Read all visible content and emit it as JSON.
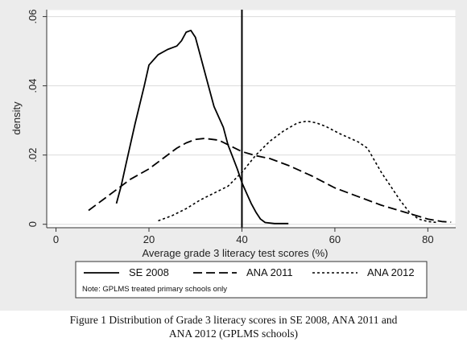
{
  "chart_data": {
    "type": "line",
    "xlabel": "Average grade 3 literacy test scores (%)",
    "ylabel": "density",
    "xlim": [
      -2,
      86
    ],
    "ylim": [
      -0.001,
      0.062
    ],
    "xticks": [
      0,
      20,
      40,
      60,
      80
    ],
    "xtick_labels": [
      "0",
      "20",
      "40",
      "60",
      "80"
    ],
    "yticks": [
      0,
      0.02,
      0.04,
      0.06
    ],
    "ytick_labels": [
      "0",
      ".02",
      ".04",
      ".06"
    ],
    "grid": true,
    "reference_line": {
      "x": 40
    },
    "legend_position": "bottom",
    "note": "Note: GPLMS treated primary schools only",
    "series": [
      {
        "name": "SE 2008",
        "style": "solid",
        "points": [
          [
            13,
            0.006
          ],
          [
            14,
            0.011
          ],
          [
            15,
            0.017
          ],
          [
            17,
            0.029
          ],
          [
            19,
            0.04
          ],
          [
            20,
            0.046
          ],
          [
            22,
            0.049
          ],
          [
            24,
            0.0505
          ],
          [
            25,
            0.051
          ],
          [
            26,
            0.0515
          ],
          [
            27,
            0.053
          ],
          [
            28,
            0.0555
          ],
          [
            29,
            0.056
          ],
          [
            30,
            0.054
          ],
          [
            31,
            0.049
          ],
          [
            33,
            0.039
          ],
          [
            34,
            0.034
          ],
          [
            36,
            0.028
          ],
          [
            37,
            0.023
          ],
          [
            38,
            0.0195
          ],
          [
            39,
            0.016
          ],
          [
            40,
            0.012
          ],
          [
            41,
            0.009
          ],
          [
            42,
            0.006
          ],
          [
            43,
            0.0035
          ],
          [
            44,
            0.0015
          ],
          [
            45,
            0.0005
          ],
          [
            47,
            0.0002
          ],
          [
            50,
            0.0002
          ]
        ]
      },
      {
        "name": "ANA 2011",
        "style": "dashed",
        "points": [
          [
            7,
            0.004
          ],
          [
            10,
            0.007
          ],
          [
            13,
            0.01
          ],
          [
            16,
            0.013
          ],
          [
            20,
            0.016
          ],
          [
            23,
            0.019
          ],
          [
            26,
            0.022
          ],
          [
            28,
            0.0235
          ],
          [
            30,
            0.0245
          ],
          [
            32,
            0.0248
          ],
          [
            35,
            0.0243
          ],
          [
            37,
            0.023
          ],
          [
            40,
            0.021
          ],
          [
            43,
            0.0198
          ],
          [
            46,
            0.019
          ],
          [
            50,
            0.017
          ],
          [
            55,
            0.014
          ],
          [
            60,
            0.0105
          ],
          [
            65,
            0.008
          ],
          [
            70,
            0.0055
          ],
          [
            75,
            0.0035
          ],
          [
            80,
            0.0015
          ],
          [
            83,
            0.0008
          ],
          [
            85,
            0.0006
          ]
        ]
      },
      {
        "name": "ANA 2012",
        "style": "dotted",
        "points": [
          [
            22,
            0.001
          ],
          [
            25,
            0.0025
          ],
          [
            28,
            0.0045
          ],
          [
            31,
            0.007
          ],
          [
            34,
            0.009
          ],
          [
            37,
            0.011
          ],
          [
            40,
            0.015
          ],
          [
            43,
            0.02
          ],
          [
            46,
            0.024
          ],
          [
            49,
            0.027
          ],
          [
            52,
            0.0293
          ],
          [
            54,
            0.0298
          ],
          [
            56,
            0.0293
          ],
          [
            58,
            0.0283
          ],
          [
            61,
            0.0262
          ],
          [
            65,
            0.0238
          ],
          [
            67,
            0.022
          ],
          [
            70,
            0.015
          ],
          [
            72,
            0.011
          ],
          [
            74,
            0.007
          ],
          [
            76,
            0.0035
          ],
          [
            78,
            0.0015
          ],
          [
            80,
            0.0008
          ],
          [
            82,
            0.0005
          ]
        ]
      }
    ]
  },
  "caption": {
    "line1": "Figure 1   Distribution of Grade 3 literacy scores in SE 2008, ANA 2011 and",
    "line2": "ANA 2012 (GPLMS schools)"
  }
}
